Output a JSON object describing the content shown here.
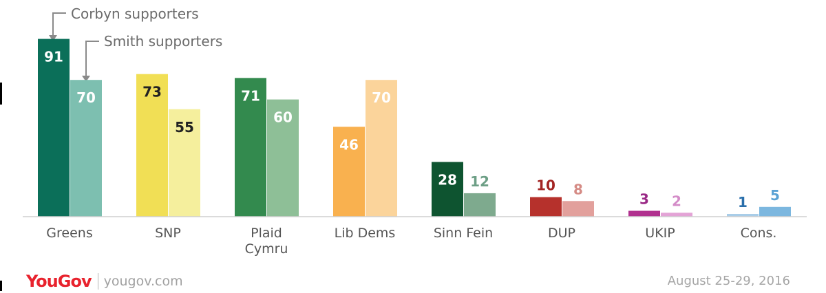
{
  "chart_data": {
    "type": "bar",
    "categories": [
      "Greens",
      "SNP",
      "Plaid Cymru",
      "Lib Dems",
      "Sinn Fein",
      "DUP",
      "UKIP",
      "Cons."
    ],
    "series": [
      {
        "name": "Corbyn supporters",
        "values": [
          91,
          73,
          71,
          46,
          28,
          10,
          3,
          1
        ],
        "colors": [
          "#0b6f59",
          "#f1df55",
          "#338a4e",
          "#f9b14f",
          "#0e5430",
          "#b6312c",
          "#b1318f",
          "#a9cde8"
        ],
        "label_colors": [
          "#ffffff",
          "#222222",
          "#ffffff",
          "#ffffff",
          "#ffffff",
          "#a32423",
          "#9a2a86",
          "#2a6fab"
        ]
      },
      {
        "name": "Smith supporters",
        "values": [
          70,
          55,
          60,
          70,
          12,
          8,
          2,
          5
        ],
        "colors": [
          "#7dbfb0",
          "#f5ef9d",
          "#8ebf97",
          "#fbd49b",
          "#7eaa8e",
          "#e2a09c",
          "#e3a3d6",
          "#7cb7df"
        ],
        "label_colors": [
          "#ffffff",
          "#222222",
          "#ffffff",
          "#ffffff",
          "#6d9f86",
          "#d58b85",
          "#d48cc8",
          "#5aa2d4"
        ]
      }
    ],
    "ylim": [
      0,
      100
    ],
    "grid": false,
    "legend": "top-left"
  },
  "footer": {
    "brand": "YouGov",
    "site": "yougov.com",
    "date": "August 25-29, 2016"
  }
}
